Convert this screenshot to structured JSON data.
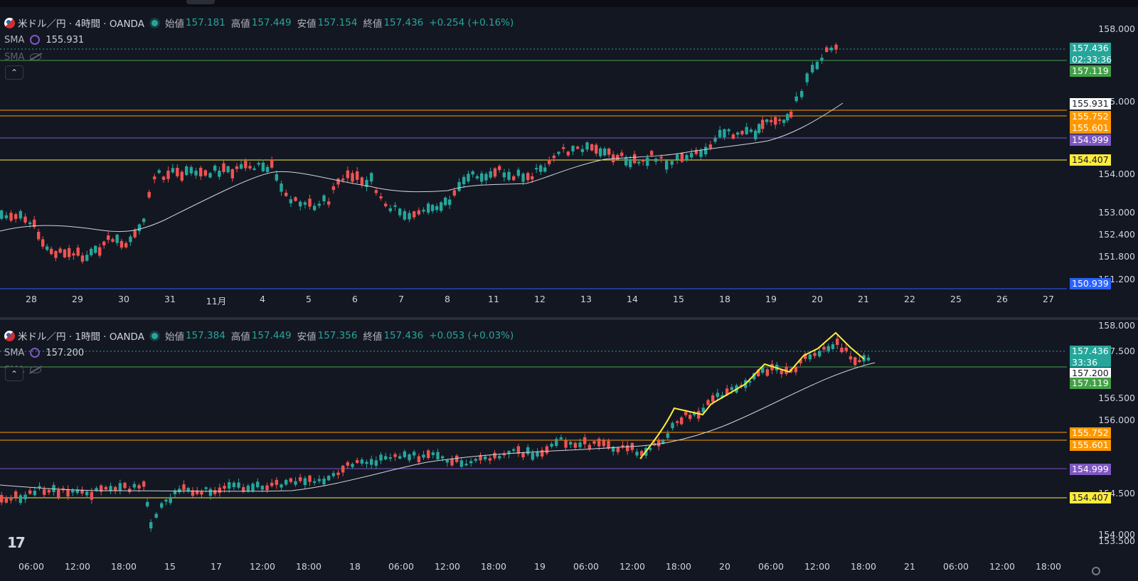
{
  "pane1": {
    "symbol": "米ドル／円 · 4時間 · OANDA",
    "open_label": "始値",
    "open": "157.181",
    "high_label": "高値",
    "high": "157.449",
    "low_label": "安値",
    "low": "157.154",
    "close_label": "終値",
    "close": "157.436",
    "change": "+0.254 (+0.16%)",
    "sma1_label": "SMA",
    "sma1_value": "155.931",
    "sma2_label": "SMA",
    "collapse_glyph": "⌃",
    "price_axis": [
      "158.000",
      "155.000",
      "154.000",
      "153.000",
      "152.400",
      "151.800",
      "151.200"
    ],
    "tags": [
      {
        "text": "157.436",
        "sub": "02:33:36",
        "color": "#26a69a"
      },
      {
        "text": "157.119",
        "color": "#43a047"
      },
      {
        "text": "155.931",
        "color": "#ffffff"
      },
      {
        "text": "155.752",
        "color": "#ff9800"
      },
      {
        "text": "155.601",
        "color": "#ff9800"
      },
      {
        "text": "154.999",
        "color": "#7e57c2"
      },
      {
        "text": "154.407",
        "color": "#ffeb3b"
      },
      {
        "text": "150.939",
        "color": "#2962ff"
      }
    ],
    "time_axis": [
      "28",
      "29",
      "30",
      "31",
      "11月",
      "4",
      "5",
      "6",
      "7",
      "8",
      "11",
      "12",
      "13",
      "14",
      "15",
      "18",
      "19",
      "20",
      "21",
      "22",
      "25",
      "26",
      "27"
    ]
  },
  "pane2": {
    "symbol": "米ドル／円 · 1時間 · OANDA",
    "open_label": "始値",
    "open": "157.384",
    "high_label": "高値",
    "high": "157.449",
    "low_label": "安値",
    "low": "157.356",
    "close_label": "終値",
    "close": "157.436",
    "change": "+0.053 (+0.03%)",
    "sma1_label": "SMA",
    "sma1_value": "157.200",
    "sma2_label": "SMA",
    "collapse_glyph": "⌃",
    "price_axis": [
      "158.000",
      "157.500",
      "156.500",
      "156.000",
      "154.500",
      "154.000",
      "153.500"
    ],
    "tags": [
      {
        "text": "157.436",
        "sub": "33:36",
        "color": "#26a69a"
      },
      {
        "text": "157.200",
        "color": "#ffffff"
      },
      {
        "text": "157.119",
        "color": "#43a047"
      },
      {
        "text": "155.752",
        "color": "#ff9800"
      },
      {
        "text": "155.601",
        "color": "#ff9800"
      },
      {
        "text": "154.999",
        "color": "#7e57c2"
      },
      {
        "text": "154.407",
        "color": "#ffeb3b"
      }
    ],
    "time_axis": [
      "06:00",
      "12:00",
      "18:00",
      "15",
      "17",
      "12:00",
      "18:00",
      "18",
      "06:00",
      "12:00",
      "18:00",
      "19",
      "06:00",
      "12:00",
      "18:00",
      "20",
      "06:00",
      "12:00",
      "18:00",
      "21",
      "06:00",
      "12:00",
      "18:00"
    ]
  },
  "logo": "17",
  "colors": {
    "up": "#26a69a",
    "down": "#ef5350",
    "bg": "#131722",
    "sma": "#d1d4dc",
    "annotation": "#ffeb3b"
  }
}
